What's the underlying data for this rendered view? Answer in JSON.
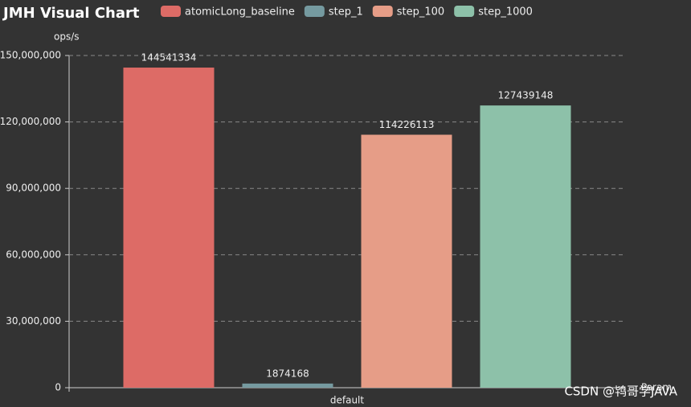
{
  "chart_data": {
    "type": "bar",
    "title": "JMH Visual Chart",
    "y_label": "ops/s",
    "x_label": "Param",
    "categories": [
      "default"
    ],
    "series": [
      {
        "name": "atomicLong_baseline",
        "color": "#dd6b66",
        "values": [
          144541334
        ]
      },
      {
        "name": "step_1",
        "color": "#759aa0",
        "values": [
          1874168
        ]
      },
      {
        "name": "step_100",
        "color": "#e69d87",
        "values": [
          114226113
        ]
      },
      {
        "name": "step_1000",
        "color": "#8dc1a9",
        "values": [
          127439148
        ]
      }
    ],
    "ylim": [
      0,
      150000000
    ],
    "yticks": [
      0,
      {
        "value": 30000000,
        "label": "30,000,000"
      },
      {
        "value": 60000000,
        "label": "60,000,000"
      },
      {
        "value": 90000000,
        "label": "90,000,000"
      },
      {
        "value": 120000000,
        "label": "120,000,000"
      },
      {
        "value": 150000000,
        "label": "150,000,000"
      }
    ],
    "grid": true,
    "watermark": "CSDN @鸨哥学JAVA"
  }
}
